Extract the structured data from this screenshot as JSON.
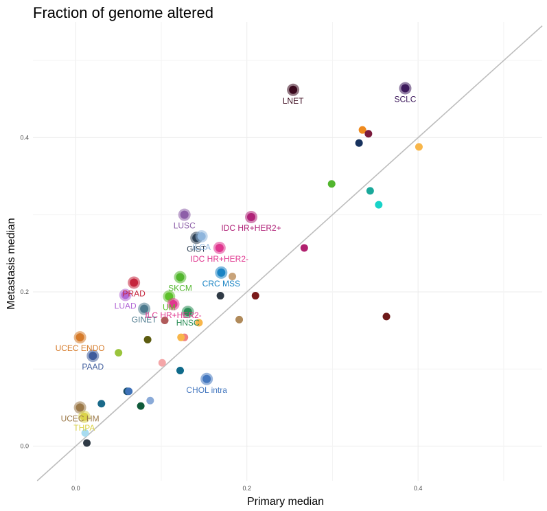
{
  "chart_data": {
    "type": "scatter",
    "title": "Fraction of genome altered",
    "xlabel": "Primary median",
    "ylabel": "Metastasis median",
    "xlim": [
      -0.05,
      0.545
    ],
    "ylim": [
      -0.045,
      0.55
    ],
    "xticks": [
      0.0,
      0.2,
      0.4
    ],
    "yticks": [
      0.0,
      0.2,
      0.4
    ],
    "tick_labels_x": [
      "0.0",
      "0.2",
      "0.4"
    ],
    "tick_labels_y": [
      "0.0",
      "0.2",
      "0.4"
    ],
    "grid": true,
    "reference_line": "y = x",
    "reference_line_color": "#bdbdbd",
    "labeled_points": [
      {
        "label": "LNET",
        "x": 0.254,
        "y": 0.462,
        "color": "#3b0a1e"
      },
      {
        "label": "SCLC",
        "x": 0.385,
        "y": 0.464,
        "color": "#3d1a5c"
      },
      {
        "label": "LUSC",
        "x": 0.127,
        "y": 0.3,
        "color": "#8d5fa8"
      },
      {
        "label": "IDC HR+HER2+",
        "x": 0.205,
        "y": 0.297,
        "color": "#b02278"
      },
      {
        "label": "GIST",
        "x": 0.141,
        "y": 0.27,
        "color": "#2f4256"
      },
      {
        "label": "ILCA",
        "x": 0.147,
        "y": 0.272,
        "color": "#8fb6dd"
      },
      {
        "label": "IDC HR+HER2-",
        "x": 0.168,
        "y": 0.257,
        "color": "#e0378f"
      },
      {
        "label": "CRC MSS",
        "x": 0.17,
        "y": 0.225,
        "color": "#1a84c4"
      },
      {
        "label": "SKCM",
        "x": 0.122,
        "y": 0.219,
        "color": "#52b62e"
      },
      {
        "label": "PRAD",
        "x": 0.068,
        "y": 0.212,
        "color": "#c5253c"
      },
      {
        "label": "LUAD",
        "x": 0.058,
        "y": 0.196,
        "color": "#b268d6"
      },
      {
        "label": "UM",
        "x": 0.109,
        "y": 0.194,
        "color": "#5dc02a"
      },
      {
        "label": "ILC HR+HER2-",
        "x": 0.114,
        "y": 0.184,
        "color": "#e0378f"
      },
      {
        "label": "GINET",
        "x": 0.08,
        "y": 0.178,
        "color": "#4d7a8e"
      },
      {
        "label": "HNSC",
        "x": 0.131,
        "y": 0.174,
        "color": "#2b8e56"
      },
      {
        "label": "UCEC ENDO",
        "x": 0.005,
        "y": 0.141,
        "color": "#d67b2a"
      },
      {
        "label": "PAAD",
        "x": 0.02,
        "y": 0.117,
        "color": "#3f5c9c"
      },
      {
        "label": "CHOL intra",
        "x": 0.153,
        "y": 0.087,
        "color": "#4578bf"
      },
      {
        "label": "UCEC HM",
        "x": 0.005,
        "y": 0.05,
        "color": "#9c7a4a"
      },
      {
        "label": "THPA",
        "x": 0.01,
        "y": 0.038,
        "color": "#dbd34a"
      }
    ],
    "unlabeled_points": [
      {
        "x": 0.335,
        "y": 0.41,
        "color": "#ef8a1e"
      },
      {
        "x": 0.342,
        "y": 0.405,
        "color": "#7a1a3c"
      },
      {
        "x": 0.331,
        "y": 0.393,
        "color": "#17325e"
      },
      {
        "x": 0.401,
        "y": 0.388,
        "color": "#f8b64a"
      },
      {
        "x": 0.299,
        "y": 0.34,
        "color": "#52b62e"
      },
      {
        "x": 0.344,
        "y": 0.331,
        "color": "#1aa89a"
      },
      {
        "x": 0.354,
        "y": 0.313,
        "color": "#18d3c8"
      },
      {
        "x": 0.267,
        "y": 0.257,
        "color": "#b0206e"
      },
      {
        "x": 0.183,
        "y": 0.22,
        "color": "#c8a37a"
      },
      {
        "x": 0.169,
        "y": 0.195,
        "color": "#2f3a45"
      },
      {
        "x": 0.21,
        "y": 0.195,
        "color": "#7a1a1a"
      },
      {
        "x": 0.363,
        "y": 0.168,
        "color": "#6e1a1a"
      },
      {
        "x": 0.104,
        "y": 0.163,
        "color": "#b05a5a"
      },
      {
        "x": 0.191,
        "y": 0.164,
        "color": "#b08a5a"
      },
      {
        "x": 0.144,
        "y": 0.16,
        "color": "#f8b64a"
      },
      {
        "x": 0.084,
        "y": 0.138,
        "color": "#5c5c10"
      },
      {
        "x": 0.127,
        "y": 0.141,
        "color": "#f08080"
      },
      {
        "x": 0.123,
        "y": 0.141,
        "color": "#f8b64a"
      },
      {
        "x": 0.05,
        "y": 0.121,
        "color": "#9ac43c"
      },
      {
        "x": 0.101,
        "y": 0.108,
        "color": "#f4a6a8"
      },
      {
        "x": 0.122,
        "y": 0.098,
        "color": "#0f6a8a"
      },
      {
        "x": 0.06,
        "y": 0.071,
        "color": "#1a4f6a"
      },
      {
        "x": 0.062,
        "y": 0.071,
        "color": "#3f72b8"
      },
      {
        "x": 0.087,
        "y": 0.059,
        "color": "#8aaad8"
      },
      {
        "x": 0.03,
        "y": 0.055,
        "color": "#1a6a8a"
      },
      {
        "x": 0.076,
        "y": 0.052,
        "color": "#0f5a3a"
      },
      {
        "x": 0.011,
        "y": 0.017,
        "color": "#a8dcf0"
      },
      {
        "x": 0.013,
        "y": 0.004,
        "color": "#2f3a45"
      }
    ]
  }
}
